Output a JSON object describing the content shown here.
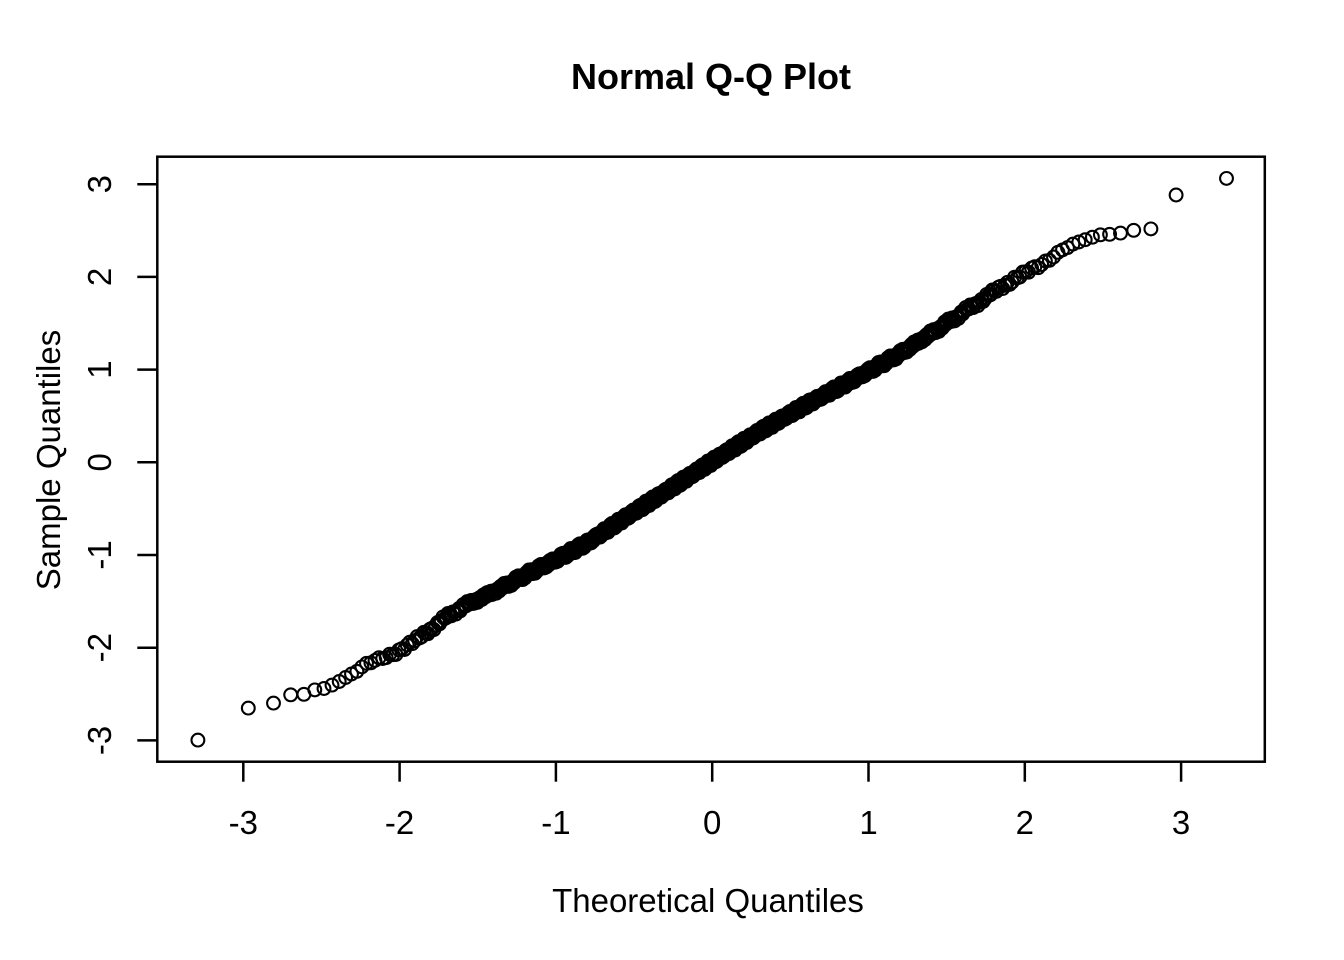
{
  "page": {
    "background": "#ffffff",
    "foreground": "#000000"
  },
  "chart_data": {
    "type": "scatter",
    "title": "Normal Q-Q Plot",
    "xlabel": "Theoretical Quantiles",
    "ylabel": "Sample Quantiles",
    "x_ticks": [
      -3,
      -2,
      -1,
      0,
      1,
      2,
      3
    ],
    "y_ticks": [
      -3,
      -2,
      -1,
      0,
      1,
      2,
      3
    ],
    "xlim": [
      -3.55,
      3.54
    ],
    "ylim": [
      -3.23,
      3.3
    ],
    "grid": false,
    "legend": false,
    "marker": "open-circle",
    "marker_color": "#000000",
    "n_points": 1000,
    "x_definition": "theoretical quantiles x[i] = qnorm((i - 0.5) / 1000), i = 1..1000",
    "y_definition": "sorted sample quantiles, y[i] = x[i] + deviation(x[i]) as read from the plot",
    "deviation_anchors": [
      [
        -3.3,
        0.29
      ],
      [
        -2.97,
        0.32
      ],
      [
        -2.81,
        0.21
      ],
      [
        -2.7,
        0.19
      ],
      [
        -2.61,
        0.11
      ],
      [
        -2.54,
        0.09
      ],
      [
        -2.48,
        0.04
      ],
      [
        -2.43,
        0.03
      ],
      [
        -2.33,
        0.02
      ],
      [
        -2.2,
        0.03
      ],
      [
        -2.05,
        -0.02
      ],
      [
        -1.9,
        -0.03
      ],
      [
        -1.75,
        0.02
      ],
      [
        -1.6,
        0.04
      ],
      [
        -1.4,
        0.0
      ],
      [
        -1.2,
        -0.02
      ],
      [
        -1.0,
        -0.05
      ],
      [
        -0.8,
        -0.07
      ],
      [
        -0.55,
        -0.04
      ],
      [
        -0.3,
        -0.02
      ],
      [
        0.0,
        0.01
      ],
      [
        0.3,
        0.03
      ],
      [
        0.6,
        0.02
      ],
      [
        0.9,
        -0.01
      ],
      [
        1.2,
        -0.03
      ],
      [
        1.5,
        0.0
      ],
      [
        1.75,
        0.03
      ],
      [
        1.95,
        0.05
      ],
      [
        2.1,
        0.02
      ],
      [
        2.25,
        0.06
      ],
      [
        2.38,
        0.02
      ],
      [
        2.48,
        -0.03
      ],
      [
        2.54,
        -0.08
      ],
      [
        2.61,
        -0.14
      ],
      [
        2.7,
        -0.2
      ],
      [
        2.81,
        -0.29
      ],
      [
        2.9,
        -0.17
      ],
      [
        2.97,
        -0.08
      ],
      [
        3.29,
        -0.23
      ]
    ],
    "extreme_points": {
      "lowest": [
        [
          -3.29,
          -3.0
        ],
        [
          -2.97,
          -2.65
        ],
        [
          -2.81,
          -2.6
        ],
        [
          -2.7,
          -2.51
        ],
        [
          -2.61,
          -2.5
        ]
      ],
      "highest": [
        [
          2.61,
          2.47
        ],
        [
          2.7,
          2.5
        ],
        [
          2.81,
          2.52
        ],
        [
          2.97,
          2.89
        ],
        [
          3.29,
          3.06
        ]
      ]
    }
  }
}
